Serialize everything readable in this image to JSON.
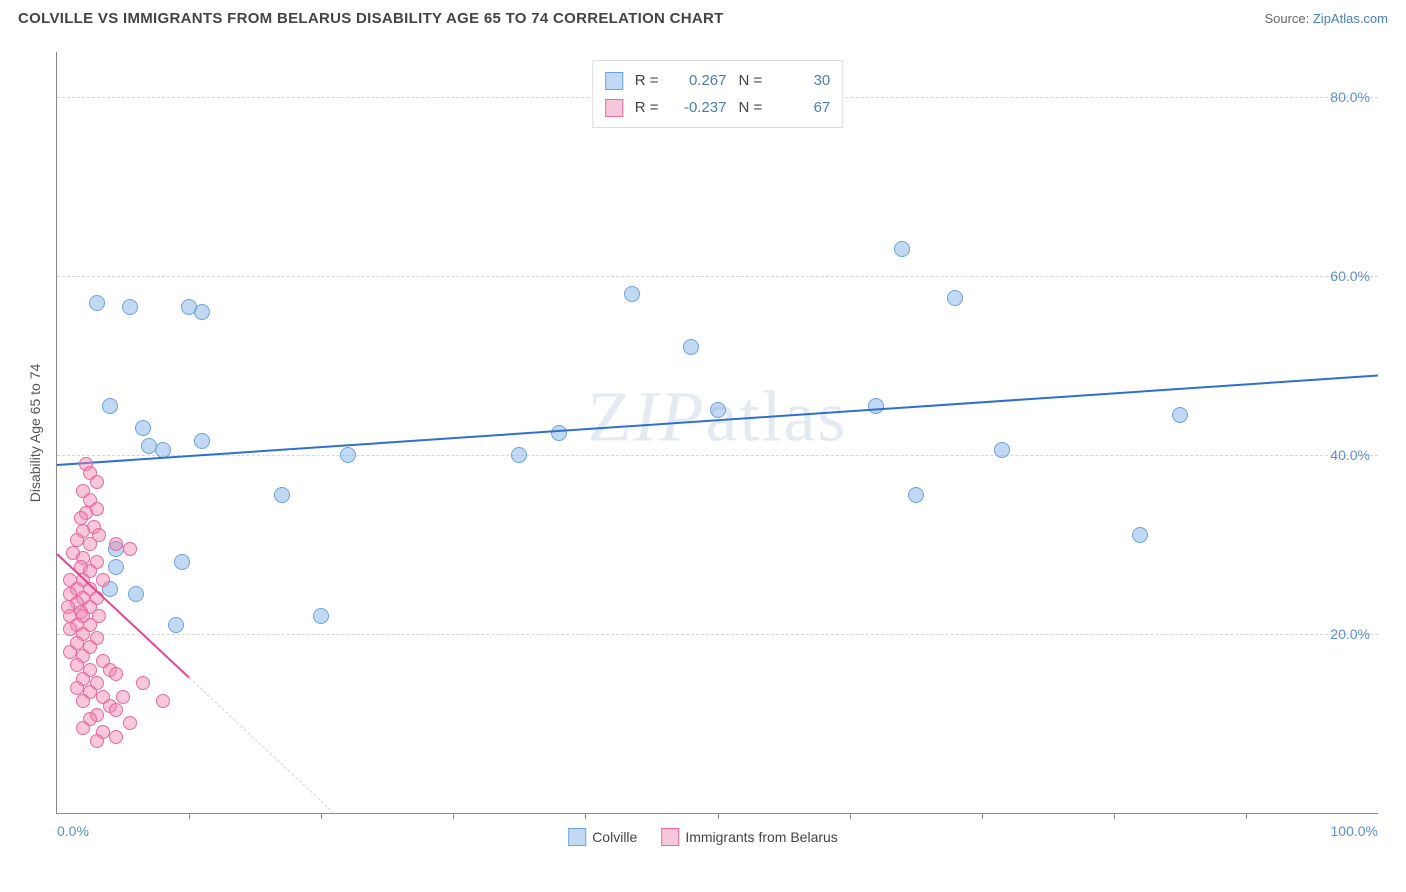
{
  "header": {
    "title": "COLVILLE VS IMMIGRANTS FROM BELARUS DISABILITY AGE 65 TO 74 CORRELATION CHART",
    "source_prefix": "Source: ",
    "source_name": "ZipAtlas.com"
  },
  "watermark": "ZIPatlas",
  "chart": {
    "type": "scatter",
    "y_axis_title": "Disability Age 65 to 74",
    "xlim": [
      0,
      100
    ],
    "ylim": [
      0,
      85
    ],
    "background": "#ffffff",
    "grid_color": "#d5d5d5",
    "axis_color": "#888888",
    "tick_label_color": "#5b8fd0",
    "yticks": [
      {
        "v": 20,
        "label": "20.0%"
      },
      {
        "v": 40,
        "label": "40.0%"
      },
      {
        "v": 60,
        "label": "60.0%"
      },
      {
        "v": 80,
        "label": "80.0%"
      }
    ],
    "xticks_minor": [
      10,
      20,
      30,
      40,
      50,
      60,
      70,
      80,
      90
    ],
    "xtick_labels": [
      {
        "v": 0,
        "label": "0.0%",
        "align": "left"
      },
      {
        "v": 100,
        "label": "100.0%",
        "align": "right"
      }
    ],
    "series": [
      {
        "name": "Colville",
        "fill": "rgba(120,170,230,0.45)",
        "stroke": "#6aa3e0",
        "marker_size": 16,
        "trend": {
          "x1": 0,
          "y1": 39.0,
          "x2": 100,
          "y2": 49.0,
          "color": "#2f6fd0",
          "dashed_after_x": null
        },
        "points": [
          [
            3.0,
            57.0
          ],
          [
            5.5,
            56.5
          ],
          [
            10.0,
            56.5
          ],
          [
            11.0,
            56.0
          ],
          [
            43.5,
            58.0
          ],
          [
            64.0,
            63.0
          ],
          [
            68.0,
            57.5
          ],
          [
            48.0,
            52.0
          ],
          [
            4.0,
            45.5
          ],
          [
            6.5,
            43.0
          ],
          [
            7.0,
            41.0
          ],
          [
            11.0,
            41.5
          ],
          [
            22.0,
            40.0
          ],
          [
            35.0,
            40.0
          ],
          [
            38.0,
            42.5
          ],
          [
            50.0,
            45.0
          ],
          [
            62.0,
            45.5
          ],
          [
            71.5,
            40.5
          ],
          [
            85.0,
            44.5
          ],
          [
            17.0,
            35.5
          ],
          [
            65.0,
            35.5
          ],
          [
            4.5,
            29.5
          ],
          [
            4.5,
            27.5
          ],
          [
            9.5,
            28.0
          ],
          [
            82.0,
            31.0
          ],
          [
            9.0,
            21.0
          ],
          [
            20.0,
            22.0
          ],
          [
            4.0,
            25.0
          ],
          [
            6.0,
            24.5
          ],
          [
            8.0,
            40.5
          ]
        ]
      },
      {
        "name": "Immigrants from Belarus",
        "fill": "rgba(240,130,170,0.45)",
        "stroke": "#e76aa0",
        "marker_size": 14,
        "trend": {
          "x1": 0,
          "y1": 29.0,
          "x2": 21,
          "y2": 0.0,
          "color": "#e04890",
          "dashed_after_x": 10
        },
        "points": [
          [
            2.2,
            39.0
          ],
          [
            2.5,
            38.0
          ],
          [
            3.0,
            37.0
          ],
          [
            2.0,
            36.0
          ],
          [
            2.5,
            35.0
          ],
          [
            3.0,
            34.0
          ],
          [
            2.2,
            33.5
          ],
          [
            1.8,
            33.0
          ],
          [
            2.8,
            32.0
          ],
          [
            2.0,
            31.5
          ],
          [
            3.2,
            31.0
          ],
          [
            1.5,
            30.5
          ],
          [
            2.5,
            30.0
          ],
          [
            4.5,
            30.0
          ],
          [
            1.2,
            29.0
          ],
          [
            2.0,
            28.5
          ],
          [
            3.0,
            28.0
          ],
          [
            1.8,
            27.5
          ],
          [
            2.5,
            27.0
          ],
          [
            5.5,
            29.5
          ],
          [
            1.0,
            26.0
          ],
          [
            2.0,
            26.0
          ],
          [
            3.5,
            26.0
          ],
          [
            1.5,
            25.0
          ],
          [
            2.5,
            25.0
          ],
          [
            1.0,
            24.5
          ],
          [
            2.0,
            24.0
          ],
          [
            3.0,
            24.0
          ],
          [
            1.5,
            23.5
          ],
          [
            2.5,
            23.0
          ],
          [
            0.8,
            23.0
          ],
          [
            1.8,
            22.5
          ],
          [
            1.0,
            22.0
          ],
          [
            2.0,
            22.0
          ],
          [
            3.2,
            22.0
          ],
          [
            1.5,
            21.0
          ],
          [
            2.5,
            21.0
          ],
          [
            1.0,
            20.5
          ],
          [
            2.0,
            20.0
          ],
          [
            3.0,
            19.5
          ],
          [
            1.5,
            19.0
          ],
          [
            2.5,
            18.5
          ],
          [
            1.0,
            18.0
          ],
          [
            2.0,
            17.5
          ],
          [
            3.5,
            17.0
          ],
          [
            1.5,
            16.5
          ],
          [
            2.5,
            16.0
          ],
          [
            4.0,
            16.0
          ],
          [
            2.0,
            15.0
          ],
          [
            3.0,
            14.5
          ],
          [
            4.5,
            15.5
          ],
          [
            1.5,
            14.0
          ],
          [
            2.5,
            13.5
          ],
          [
            3.5,
            13.0
          ],
          [
            2.0,
            12.5
          ],
          [
            4.0,
            12.0
          ],
          [
            3.0,
            11.0
          ],
          [
            4.5,
            11.5
          ],
          [
            2.5,
            10.5
          ],
          [
            5.0,
            13.0
          ],
          [
            6.5,
            14.5
          ],
          [
            8.0,
            12.5
          ],
          [
            2.0,
            9.5
          ],
          [
            3.5,
            9.0
          ],
          [
            3.0,
            8.0
          ],
          [
            4.5,
            8.5
          ],
          [
            5.5,
            10.0
          ]
        ]
      }
    ],
    "legend_top": [
      {
        "swatch_fill": "rgba(120,170,230,0.45)",
        "swatch_stroke": "#6aa3e0",
        "r_label": "R =",
        "r_val": "0.267",
        "n_label": "N =",
        "n_val": "30"
      },
      {
        "swatch_fill": "rgba(240,130,170,0.45)",
        "swatch_stroke": "#e76aa0",
        "r_label": "R =",
        "r_val": "-0.237",
        "n_label": "N =",
        "n_val": "67"
      }
    ],
    "legend_bottom": [
      {
        "swatch_fill": "rgba(120,170,230,0.45)",
        "swatch_stroke": "#6aa3e0",
        "label": "Colville"
      },
      {
        "swatch_fill": "rgba(240,130,170,0.45)",
        "swatch_stroke": "#e76aa0",
        "label": "Immigrants from Belarus"
      }
    ]
  }
}
